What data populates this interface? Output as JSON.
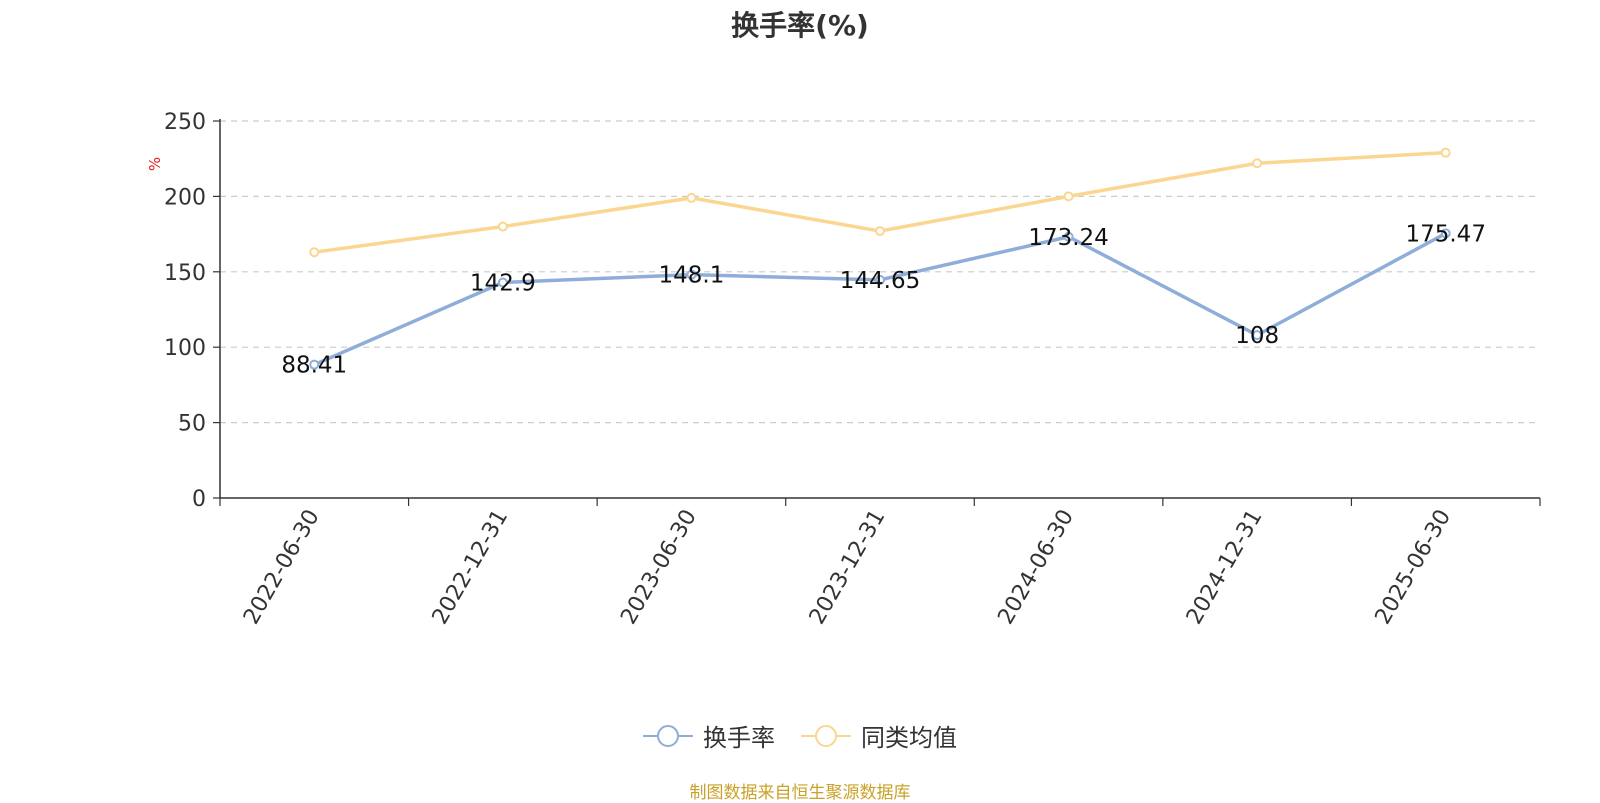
{
  "chart_data": {
    "type": "line",
    "title": "换手率(%)",
    "ylabel": "%",
    "ylim": [
      0,
      250
    ],
    "yticks": [
      0,
      50,
      100,
      150,
      200,
      250
    ],
    "grid": true,
    "legend_position": "bottom",
    "categories": [
      "2022-06-30",
      "2022-12-31",
      "2023-06-30",
      "2023-12-31",
      "2024-06-30",
      "2024-12-31",
      "2025-06-30"
    ],
    "series": [
      {
        "name": "换手率",
        "color": "#8eaed9",
        "values": [
          88.41,
          142.9,
          148.1,
          144.65,
          173.24,
          108,
          175.47
        ],
        "labels": [
          "88.41",
          "142.9",
          "148.1",
          "144.65",
          "173.24",
          "108",
          "175.47"
        ]
      },
      {
        "name": "同类均值",
        "color": "#fbd690",
        "values": [
          163,
          180,
          199,
          177,
          200,
          222,
          229
        ]
      }
    ]
  },
  "source_note": "制图数据来自恒生聚源数据库"
}
